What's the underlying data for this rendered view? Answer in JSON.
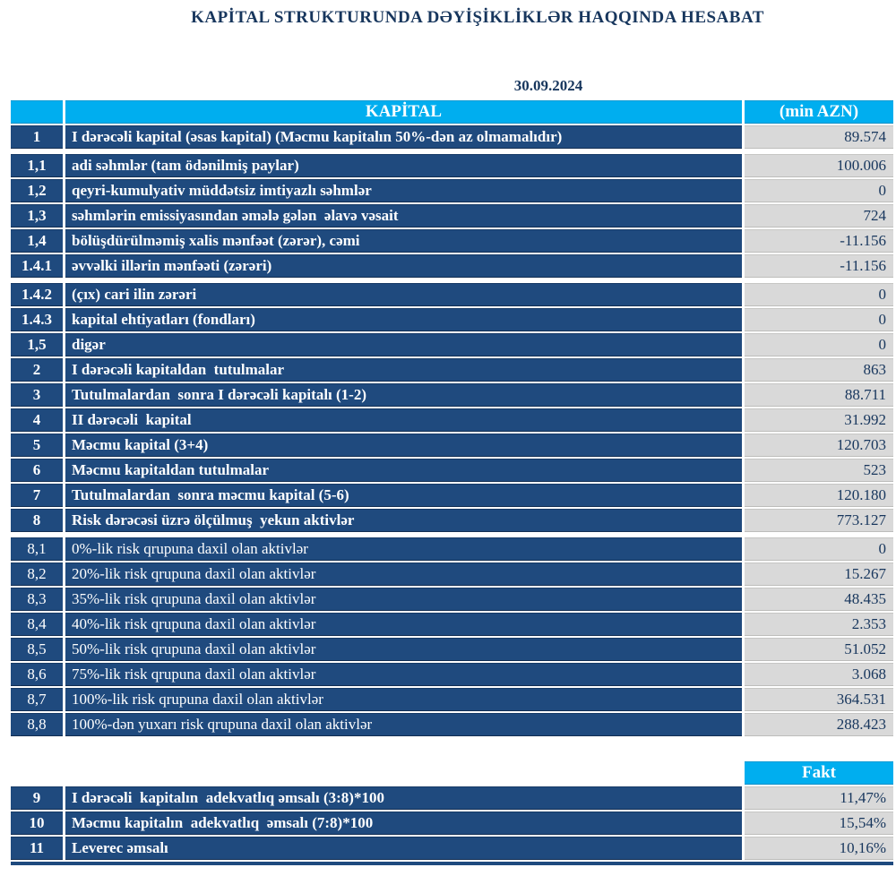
{
  "header": {
    "title": "KAPİTAL STRUKTURUNDA DƏYİŞİKLİKLƏR HAQQINDA HESABAT",
    "date": "30.09.2024"
  },
  "colors": {
    "accent_cyan": "#00AEEF",
    "row_blue": "#1F4A7E",
    "value_cell_gray": "#D9D9D9",
    "text_navy": "#17365D"
  },
  "table1": {
    "col_label": "KAPİTAL",
    "col_value": "(min AZN)",
    "rows": [
      {
        "no": "1",
        "label": "I dərəcəli kapital (əsas kapital) (Məcmu kapitalın 50%-dən az olmamalıdır)",
        "value": "89.574",
        "bold": true,
        "gap": false
      },
      {
        "no": "1,1",
        "label": "adi səhmlər (tam ödənilmiş paylar)",
        "value": "100.006",
        "bold": true,
        "gap": true
      },
      {
        "no": "1,2",
        "label": "qeyri-kumulyativ müddətsiz imtiyazlı səhmlər",
        "value": "0",
        "bold": true,
        "gap": false
      },
      {
        "no": "1,3",
        "label": "səhmlərin emissiyasından əmələ gələn  əlavə vəsait",
        "value": "724",
        "bold": true,
        "gap": false
      },
      {
        "no": "1,4",
        "label": "bölüşdürülməmiş xalis mənfəət (zərər), cəmi",
        "value": "-11.156",
        "bold": true,
        "gap": false
      },
      {
        "no": "1.4.1",
        "label": "əvvəlki illərin mənfəəti (zərəri)",
        "value": "-11.156",
        "bold": true,
        "gap": false
      },
      {
        "no": "1.4.2",
        "label": "(çıx) cari ilin zərəri",
        "value": "0",
        "bold": true,
        "gap": true
      },
      {
        "no": "1.4.3",
        "label": "kapital ehtiyatları (fondları)",
        "value": "0",
        "bold": true,
        "gap": false
      },
      {
        "no": "1,5",
        "label": "digər",
        "value": "0",
        "bold": true,
        "gap": false
      },
      {
        "no": "2",
        "label": "I dərəcəli kapitaldan  tutulmalar",
        "value": "863",
        "bold": true,
        "gap": false
      },
      {
        "no": "3",
        "label": "Tutulmalardan  sonra I dərəcəli kapitalı (1-2)",
        "value": "88.711",
        "bold": true,
        "gap": false
      },
      {
        "no": "4",
        "label": "II dərəcəli  kapital",
        "value": "31.992",
        "bold": true,
        "gap": false
      },
      {
        "no": "5",
        "label": "Məcmu kapital (3+4)",
        "value": "120.703",
        "bold": true,
        "gap": false
      },
      {
        "no": "6",
        "label": "Məcmu kapitaldan tutulmalar",
        "value": "523",
        "bold": true,
        "gap": false
      },
      {
        "no": "7",
        "label": "Tutulmalardan  sonra məcmu kapital (5-6)",
        "value": "120.180",
        "bold": true,
        "gap": false
      },
      {
        "no": "8",
        "label": "Risk dərəcəsi üzrə ölçülmuş  yekun aktivlər",
        "value": "773.127",
        "bold": true,
        "gap": false
      },
      {
        "no": "8,1",
        "label": "0%-lik risk qrupuna daxil olan aktivlər",
        "value": "0",
        "bold": false,
        "gap": true
      },
      {
        "no": "8,2",
        "label": "20%-lik risk qrupuna daxil olan aktivlər",
        "value": "15.267",
        "bold": false,
        "gap": false
      },
      {
        "no": "8,3",
        "label": "35%-lik risk qrupuna daxil olan aktivlər",
        "value": "48.435",
        "bold": false,
        "gap": false
      },
      {
        "no": "8,4",
        "label": "40%-lik risk qrupuna daxil olan aktivlər",
        "value": "2.353",
        "bold": false,
        "gap": false
      },
      {
        "no": "8,5",
        "label": "50%-lik risk qrupuna daxil olan aktivlər",
        "value": "51.052",
        "bold": false,
        "gap": false
      },
      {
        "no": "8,6",
        "label": "75%-lik risk qrupuna daxil olan aktivlər",
        "value": "3.068",
        "bold": false,
        "gap": false
      },
      {
        "no": "8,7",
        "label": "100%-lik risk qrupuna daxil olan aktivlər",
        "value": "364.531",
        "bold": false,
        "gap": false
      },
      {
        "no": "8,8",
        "label": "100%-dən yuxarı risk qrupuna daxil olan aktivlər",
        "value": "288.423",
        "bold": false,
        "gap": false
      }
    ]
  },
  "table2": {
    "col_value": "Fakt",
    "rows": [
      {
        "no": "9",
        "label": "I dərəcəli  kapitalın  adekvatlıq əmsalı (3:8)*100",
        "value": "11,47%",
        "bold": true,
        "gap": false
      },
      {
        "no": "10",
        "label": "Məcmu kapitalın  adekvatlıq  əmsalı (7:8)*100",
        "value": "15,54%",
        "bold": true,
        "gap": false
      },
      {
        "no": "11",
        "label": "Leverec əmsalı",
        "value": "10,16%",
        "bold": true,
        "gap": false
      }
    ]
  }
}
